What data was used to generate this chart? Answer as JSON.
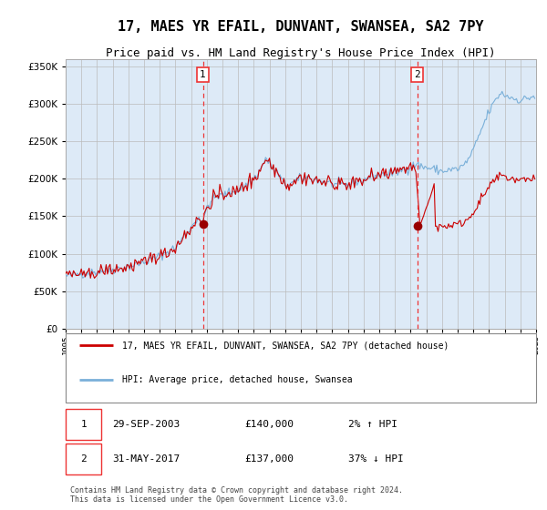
{
  "title": "17, MAES YR EFAIL, DUNVANT, SWANSEA, SA2 7PY",
  "subtitle": "Price paid vs. HM Land Registry's House Price Index (HPI)",
  "title_fontsize": 11,
  "subtitle_fontsize": 9,
  "legend_line1": "17, MAES YR EFAIL, DUNVANT, SWANSEA, SA2 7PY (detached house)",
  "legend_line2": "HPI: Average price, detached house, Swansea",
  "footnote": "Contains HM Land Registry data © Crown copyright and database right 2024.\nThis data is licensed under the Open Government Licence v3.0.",
  "sale1_label": "1",
  "sale1_date": "29-SEP-2003",
  "sale1_price_str": "£140,000",
  "sale1_hpi_diff": "2% ↑ HPI",
  "sale2_label": "2",
  "sale2_date": "31-MAY-2017",
  "sale2_price_str": "£137,000",
  "sale2_hpi_diff": "37% ↓ HPI",
  "ylim": [
    0,
    360000
  ],
  "yticks": [
    0,
    50000,
    100000,
    150000,
    200000,
    250000,
    300000,
    350000
  ],
  "hpi_color": "#7ab0d9",
  "price_color": "#cc0000",
  "vline_color": "#ee3333",
  "sale1_x_year": 2003.75,
  "sale2_x_year": 2017.42,
  "sale1_price": 140000,
  "sale2_price": 137000,
  "plot_bg_color": "#ddeaf7",
  "xlim_min": 1995,
  "xlim_max": 2025
}
